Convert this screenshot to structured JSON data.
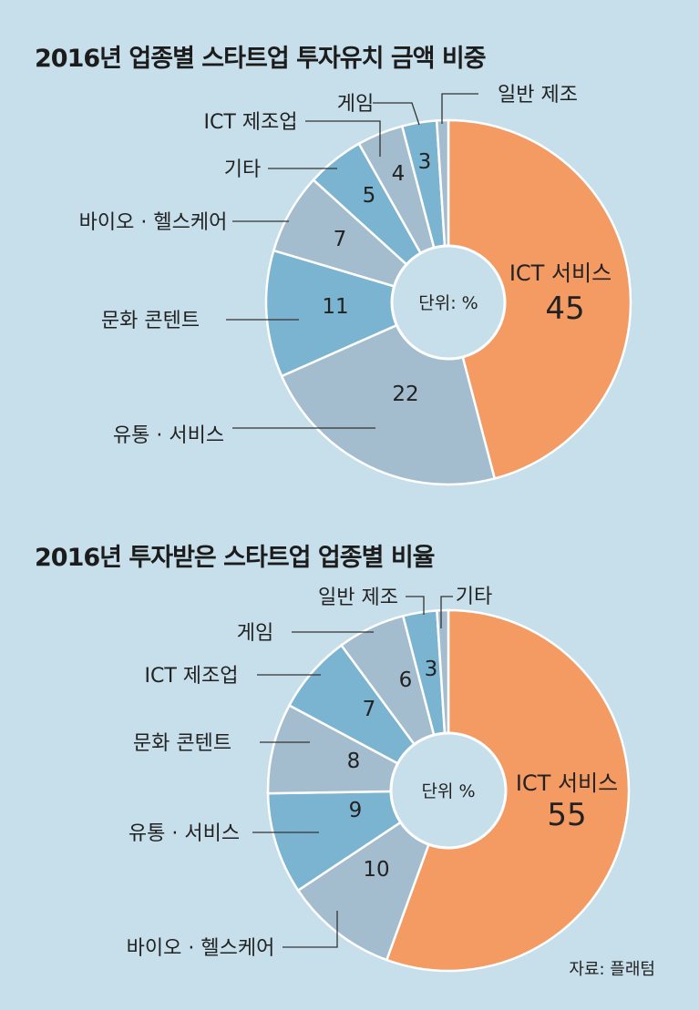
{
  "chart_data": [
    {
      "type": "pie",
      "title": "2016년 업종별 스타트업 투자유치 금액 비중",
      "center_label": "단위: %",
      "slices": [
        {
          "label": "ICT 서비스",
          "value": 45,
          "color": "#f49a63"
        },
        {
          "label": "유통 · 서비스",
          "value": 22,
          "color": "#a3bdcf"
        },
        {
          "label": "문화 콘텐트",
          "value": 11,
          "color": "#7bb4d0"
        },
        {
          "label": "바이오 · 헬스케어",
          "value": 7,
          "color": "#a3bdcf"
        },
        {
          "label": "기타",
          "value": 5,
          "color": "#7bb4d0"
        },
        {
          "label": "ICT 제조업",
          "value": 4,
          "color": "#a3bdcf"
        },
        {
          "label": "게임",
          "value": 3,
          "color": "#7bb4d0"
        },
        {
          "label": "일반 제조",
          "value": 1,
          "color": "#a3bdcf"
        }
      ]
    },
    {
      "type": "pie",
      "title": "2016년 투자받은 스타트업 업종별 비율",
      "center_label": "단위 %",
      "slices": [
        {
          "label": "ICT 서비스",
          "value": 55,
          "color": "#f49a63"
        },
        {
          "label": "바이오 · 헬스케어",
          "value": 10,
          "color": "#a3bdcf"
        },
        {
          "label": "유통 · 서비스",
          "value": 9,
          "color": "#7bb4d0"
        },
        {
          "label": "문화 콘텐트",
          "value": 8,
          "color": "#a3bdcf"
        },
        {
          "label": "ICT 제조업",
          "value": 7,
          "color": "#7bb4d0"
        },
        {
          "label": "게임",
          "value": 6,
          "color": "#a3bdcf"
        },
        {
          "label": "일반 제조",
          "value": 3,
          "color": "#7bb4d0"
        },
        {
          "label": "기타",
          "value": 1,
          "color": "#a3bdcf"
        }
      ]
    }
  ],
  "source": "자료: 플래텀"
}
